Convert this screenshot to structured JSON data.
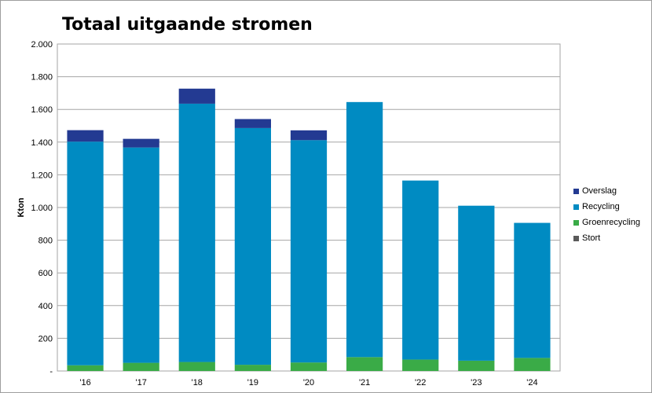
{
  "chart_data": {
    "type": "bar",
    "stacked": true,
    "title": "Totaal uitgaande stromen",
    "ylabel": "Kton",
    "xlabel": "",
    "ylim": [
      0,
      2000
    ],
    "yticks": [
      0,
      200,
      400,
      600,
      800,
      1000,
      1200,
      1400,
      1600,
      1800,
      2000
    ],
    "ytick_labels": [
      "-",
      "200",
      "400",
      "600",
      "800",
      "1.000",
      "1.200",
      "1.400",
      "1.600",
      "1.800",
      "2.000"
    ],
    "categories": [
      "'16",
      "'17",
      "'18",
      "'19",
      "'20",
      "'21",
      "'22",
      "'23",
      "'24"
    ],
    "grid": true,
    "legend_position": "right",
    "series": [
      {
        "name": "Stort",
        "color": "#5a5a5a",
        "values": [
          0,
          0,
          0,
          0,
          0,
          0,
          0,
          0,
          0
        ]
      },
      {
        "name": "Groenrecycling",
        "color": "#3aab47",
        "values": [
          35,
          50,
          55,
          38,
          52,
          85,
          70,
          63,
          80
        ]
      },
      {
        "name": "Recycling",
        "color": "#008bc2",
        "values": [
          1368,
          1317,
          1580,
          1448,
          1360,
          1560,
          1095,
          948,
          826
        ]
      },
      {
        "name": "Overslag",
        "color": "#233a92",
        "values": [
          70,
          53,
          92,
          55,
          60,
          0,
          0,
          0,
          0
        ]
      }
    ],
    "legend_order": [
      "Overslag",
      "Recycling",
      "Groenrecycling",
      "Stort"
    ]
  }
}
